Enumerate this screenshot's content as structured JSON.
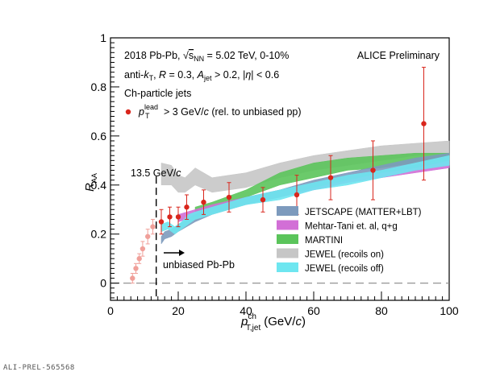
{
  "chart_data": {
    "type": "scatter",
    "xlabel_main": "p",
    "xlabel_sup": "ch",
    "xlabel_sub": "T,jet",
    "xlabel_unit": "(GeV/c)",
    "ylabel_main": "R",
    "ylabel_sub": "AA",
    "xlim": [
      0,
      100
    ],
    "ylim": [
      -0.07,
      1.0
    ],
    "x_ticks": [
      0,
      20,
      40,
      60,
      80,
      100
    ],
    "y_ticks": [
      0,
      0.2,
      0.4,
      0.6,
      0.8,
      1
    ],
    "y_tick_labels": [
      "0",
      "0.2",
      "0.4",
      "0.6",
      "0.8",
      "1"
    ],
    "x_tick_labels": [
      "0",
      "20",
      "40",
      "60",
      "80",
      "100"
    ],
    "dashed_zero_line": true,
    "cut_line_x": 13.5,
    "cut_label": "13.5 GeV/c",
    "annotations": {
      "line1": "2018 Pb-Pb, √s_NN = 5.02 TeV, 0-10%",
      "line2": "anti-k_T, R = 0.3, A_jet > 0.2, |η| < 0.6",
      "line3": "Ch-particle jets",
      "data_legend": "p_T^lead > 3 GeV/c  (rel. to unbiased pp)",
      "experiment": "ALICE Preliminary",
      "unbiased": "unbiased Pb-Pb"
    },
    "legend_position": "bottom-right",
    "data": {
      "color": "#d9261c",
      "points": [
        {
          "x": 15,
          "y": 0.25,
          "err": 0.05
        },
        {
          "x": 17.5,
          "y": 0.27,
          "err": 0.04
        },
        {
          "x": 20,
          "y": 0.27,
          "err": 0.04
        },
        {
          "x": 22.5,
          "y": 0.31,
          "err": 0.05
        },
        {
          "x": 27.5,
          "y": 0.33,
          "err": 0.05
        },
        {
          "x": 35,
          "y": 0.35,
          "err": 0.06
        },
        {
          "x": 45,
          "y": 0.34,
          "err": 0.05
        },
        {
          "x": 55,
          "y": 0.36,
          "err": 0.08
        },
        {
          "x": 65,
          "y": 0.43,
          "err": 0.09
        },
        {
          "x": 77.5,
          "y": 0.46,
          "err": 0.12
        },
        {
          "x": 92.5,
          "y": 0.65,
          "err": 0.23
        }
      ],
      "faded_color": "#f0a09a",
      "faded_points": [
        {
          "x": 6.5,
          "y": 0.02,
          "err": 0.02
        },
        {
          "x": 7.5,
          "y": 0.06,
          "err": 0.02
        },
        {
          "x": 8.5,
          "y": 0.1,
          "err": 0.02
        },
        {
          "x": 9.5,
          "y": 0.14,
          "err": 0.03
        },
        {
          "x": 11,
          "y": 0.19,
          "err": 0.03
        },
        {
          "x": 12.5,
          "y": 0.23,
          "err": 0.03
        }
      ]
    },
    "series": [
      {
        "name": "JETSCAPE (MATTER+LBT)",
        "color": "#7d9abd",
        "x": [
          15,
          16,
          18,
          20,
          25,
          30,
          40,
          50,
          60,
          70,
          80,
          90,
          100
        ],
        "low": [
          0.16,
          0.18,
          0.19,
          0.21,
          0.25,
          0.28,
          0.32,
          0.35,
          0.39,
          0.42,
          0.45,
          0.47,
          0.5
        ],
        "high": [
          0.19,
          0.21,
          0.22,
          0.24,
          0.28,
          0.31,
          0.35,
          0.38,
          0.42,
          0.45,
          0.48,
          0.51,
          0.53
        ]
      },
      {
        "name": "Mehtar-Tani et. al, q+g",
        "color": "#d26fd6",
        "x": [
          20,
          30,
          40,
          50,
          60,
          70,
          80,
          90,
          100
        ],
        "low": [
          0.25,
          0.29,
          0.32,
          0.35,
          0.38,
          0.41,
          0.43,
          0.45,
          0.47
        ],
        "high": [
          0.28,
          0.32,
          0.35,
          0.38,
          0.41,
          0.44,
          0.46,
          0.48,
          0.5
        ]
      },
      {
        "name": "MARTINI",
        "color": "#5bc45b",
        "x": [
          25,
          30,
          40,
          50,
          60,
          70,
          80,
          90,
          100
        ],
        "low": [
          0.29,
          0.31,
          0.35,
          0.4,
          0.43,
          0.46,
          0.47,
          0.49,
          0.5
        ],
        "high": [
          0.31,
          0.33,
          0.38,
          0.45,
          0.49,
          0.51,
          0.52,
          0.53,
          0.53
        ]
      },
      {
        "name": "JEWEL (recoils on)",
        "color": "#c6c6c6",
        "x": [
          15,
          18,
          20,
          22,
          25,
          30,
          35,
          40,
          50,
          60,
          70,
          80,
          90,
          100
        ],
        "low": [
          0.4,
          0.4,
          0.37,
          0.37,
          0.4,
          0.37,
          0.38,
          0.39,
          0.43,
          0.46,
          0.48,
          0.5,
          0.52,
          0.53
        ],
        "high": [
          0.49,
          0.48,
          0.44,
          0.43,
          0.47,
          0.43,
          0.44,
          0.45,
          0.49,
          0.52,
          0.54,
          0.56,
          0.57,
          0.58
        ]
      },
      {
        "name": "JEWEL (recoils off)",
        "color": "#6ee6f0",
        "x": [
          15,
          17,
          19,
          21,
          23,
          25,
          30,
          40,
          50,
          60,
          70,
          80,
          90,
          100
        ],
        "low": [
          0.21,
          0.22,
          0.2,
          0.22,
          0.24,
          0.26,
          0.28,
          0.32,
          0.34,
          0.38,
          0.4,
          0.43,
          0.46,
          0.48
        ],
        "high": [
          0.24,
          0.25,
          0.23,
          0.25,
          0.28,
          0.29,
          0.31,
          0.35,
          0.38,
          0.41,
          0.44,
          0.46,
          0.49,
          0.52
        ]
      }
    ]
  },
  "watermark": "ALI-PREL-565568"
}
